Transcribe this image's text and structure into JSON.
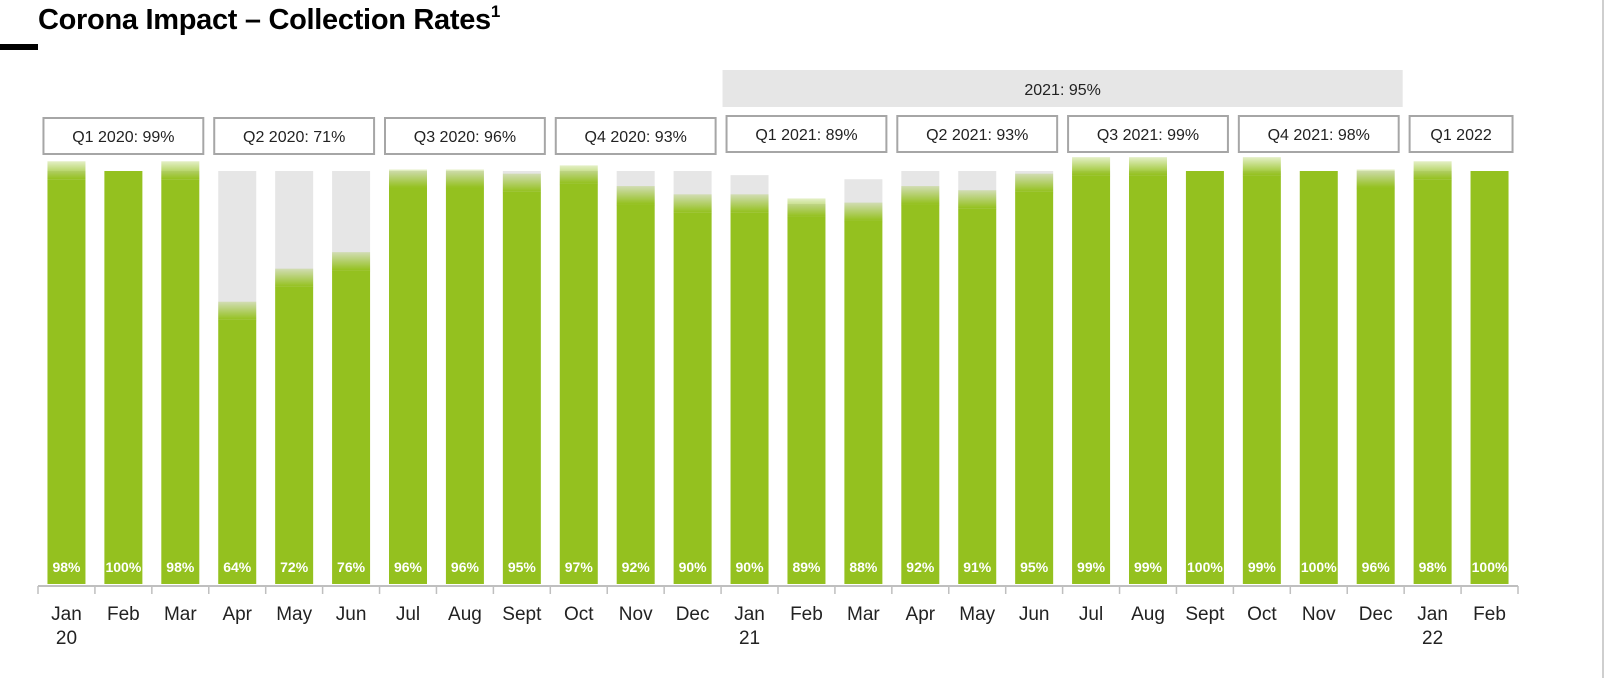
{
  "title": "Corona Impact – Collection Rates",
  "title_footnote": "1",
  "colors": {
    "collected": "#94c11f",
    "uncollected": "#e6e6e6",
    "box_border": "#a6a6a6",
    "year_band": "#e6e6e6",
    "axis": "#bfbfbf"
  },
  "chart_data": {
    "type": "bar",
    "title": "Corona Impact – Collection Rates",
    "categories": [
      "Jan",
      "Feb",
      "Mar",
      "Apr",
      "May",
      "Jun",
      "Jul",
      "Aug",
      "Sept",
      "Oct",
      "Nov",
      "Dec",
      "Jan",
      "Feb",
      "Mar",
      "Apr",
      "May",
      "Jun",
      "Jul",
      "Aug",
      "Sept",
      "Oct",
      "Nov",
      "Dec",
      "Jan",
      "Feb"
    ],
    "year_labels": [
      {
        "index": 0,
        "text": "20"
      },
      {
        "index": 12,
        "text": "21"
      },
      {
        "index": 24,
        "text": "22"
      }
    ],
    "values": [
      98,
      100,
      98,
      64,
      72,
      76,
      96,
      96,
      95,
      97,
      92,
      90,
      90,
      89,
      88,
      92,
      91,
      95,
      99,
      99,
      100,
      99,
      100,
      96,
      98,
      100
    ],
    "value_labels": [
      "98%",
      "100%",
      "98%",
      "64%",
      "72%",
      "76%",
      "96%",
      "96%",
      "95%",
      "97%",
      "92%",
      "90%",
      "90%",
      "89%",
      "88%",
      "92%",
      "91%",
      "95%",
      "99%",
      "99%",
      "100%",
      "99%",
      "100%",
      "96%",
      "98%",
      "100%"
    ],
    "totals": [
      100,
      100,
      100,
      100,
      100,
      100,
      100,
      100,
      100,
      100,
      100,
      100,
      99,
      92,
      98,
      100,
      100,
      100,
      100,
      100,
      100,
      100,
      100,
      100,
      100,
      100
    ],
    "quarter_labels": [
      {
        "text": "Q1 2020: 99%",
        "start": 0,
        "end": 2
      },
      {
        "text": "Q2 2020: 71%",
        "start": 3,
        "end": 5
      },
      {
        "text": "Q3 2020: 96%",
        "start": 6,
        "end": 8
      },
      {
        "text": "Q4 2020: 93%",
        "start": 9,
        "end": 11
      },
      {
        "text": "Q1 2021: 89%",
        "start": 12,
        "end": 14
      },
      {
        "text": "Q2 2021: 93%",
        "start": 15,
        "end": 17
      },
      {
        "text": "Q3 2021: 99%",
        "start": 18,
        "end": 20
      },
      {
        "text": "Q4 2021: 98%",
        "start": 21,
        "end": 23
      },
      {
        "text": "Q1 2022",
        "start": 24,
        "end": 25
      }
    ],
    "year_summary": {
      "text": "2021: 95%",
      "start": 12,
      "end": 23
    },
    "ylim": [
      0,
      100
    ]
  }
}
